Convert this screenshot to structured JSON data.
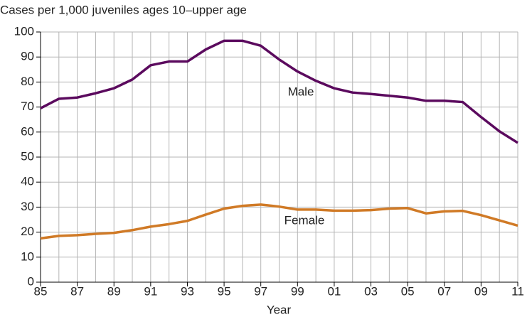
{
  "chart_data": {
    "type": "line",
    "title": "Cases per 1,000 juveniles ages 10–upper age",
    "xlabel": "Year",
    "x": [
      1985,
      1986,
      1987,
      1988,
      1989,
      1990,
      1991,
      1992,
      1993,
      1994,
      1995,
      1996,
      1997,
      1998,
      1999,
      2000,
      2001,
      2002,
      2003,
      2004,
      2005,
      2006,
      2007,
      2008,
      2009,
      2010,
      2011
    ],
    "series": [
      {
        "name": "Male",
        "color": "#5b0a5e",
        "values": [
          69.5,
          73.3,
          73.8,
          75.5,
          77.5,
          81,
          86.7,
          88.2,
          88.2,
          93,
          96.5,
          96.5,
          94.5,
          89,
          84.2,
          80.5,
          77.5,
          75.8,
          75.2,
          74.5,
          73.8,
          72.5,
          72.5,
          72,
          66,
          60.3,
          55.7
        ]
      },
      {
        "name": "Female",
        "color": "#d07a26",
        "values": [
          17.5,
          18.5,
          18.8,
          19.3,
          19.7,
          20.8,
          22.2,
          23.2,
          24.5,
          27,
          29.4,
          30.5,
          31,
          30.2,
          29,
          29,
          28.6,
          28.6,
          28.8,
          29.4,
          29.6,
          27.5,
          28.3,
          28.5,
          26.8,
          24.7,
          22.6
        ]
      }
    ],
    "xlim": [
      1985,
      2011
    ],
    "xticks": [
      {
        "value": 1985,
        "label": "85"
      },
      {
        "value": 1987,
        "label": "87"
      },
      {
        "value": 1989,
        "label": "89"
      },
      {
        "value": 1991,
        "label": "91"
      },
      {
        "value": 1993,
        "label": "93"
      },
      {
        "value": 1995,
        "label": "95"
      },
      {
        "value": 1997,
        "label": "97"
      },
      {
        "value": 1999,
        "label": "99"
      },
      {
        "value": 2001,
        "label": "01"
      },
      {
        "value": 2003,
        "label": "03"
      },
      {
        "value": 2005,
        "label": "05"
      },
      {
        "value": 2007,
        "label": "07"
      },
      {
        "value": 2009,
        "label": "09"
      },
      {
        "value": 2011,
        "label": "11"
      }
    ],
    "ylim": [
      0,
      100
    ],
    "yticks": [
      0,
      10,
      20,
      30,
      40,
      50,
      60,
      70,
      80,
      90,
      100
    ],
    "grid": true
  }
}
